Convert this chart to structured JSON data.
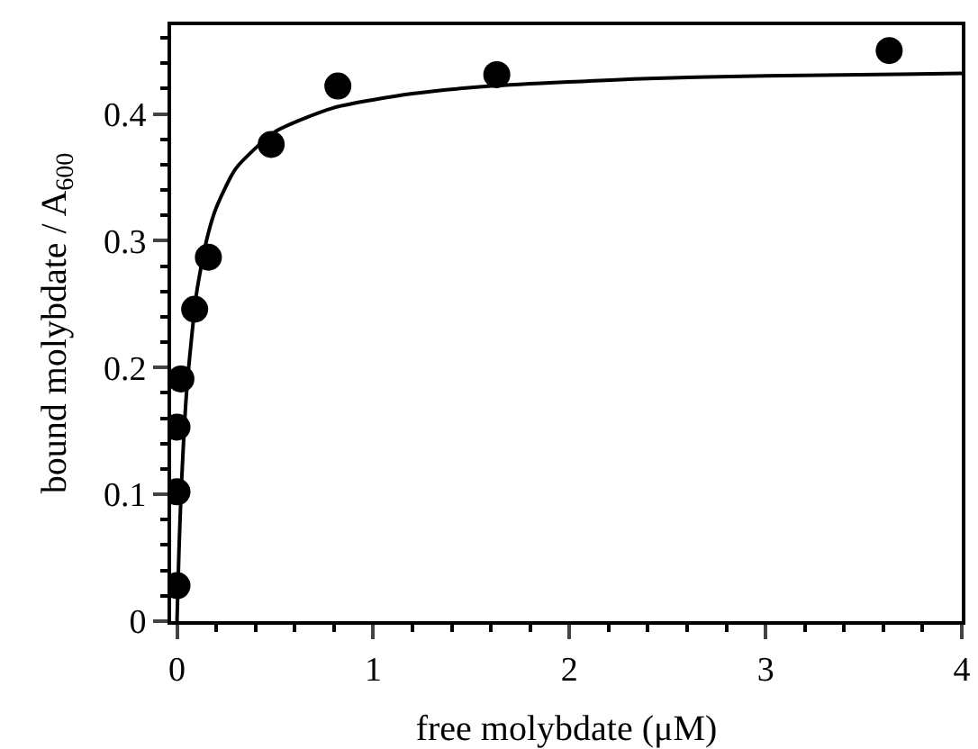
{
  "chart_data": {
    "type": "scatter",
    "xlabel": "free molybdate (μM)",
    "ylabel": "bound molybdate / A$_{600}$",
    "xlim": [
      -0.03,
      4
    ],
    "ylim": [
      0,
      0.47
    ],
    "xticks": [
      0,
      1,
      2,
      3,
      4,
      {
        "value": 0.2,
        "label": null
      },
      {
        "value": 0.4,
        "label": null
      },
      {
        "value": 0.6,
        "label": null
      },
      {
        "value": 0.8,
        "label": null
      },
      {
        "value": 1.2,
        "label": null
      },
      {
        "value": 1.4,
        "label": null
      },
      {
        "value": 1.6,
        "label": null
      },
      {
        "value": 1.8,
        "label": null
      },
      {
        "value": 2.2,
        "label": null
      },
      {
        "value": 2.4,
        "label": null
      },
      {
        "value": 2.6,
        "label": null
      },
      {
        "value": 2.8,
        "label": null
      },
      {
        "value": 3.2,
        "label": null
      },
      {
        "value": 3.4,
        "label": null
      },
      {
        "value": 3.6,
        "label": null
      },
      {
        "value": 3.8,
        "label": null
      }
    ],
    "yticks": [
      0,
      0.1,
      0.2,
      0.3,
      0.4,
      {
        "value": 0.02,
        "label": null
      },
      {
        "value": 0.04,
        "label": null
      },
      {
        "value": 0.06,
        "label": null
      },
      {
        "value": 0.08,
        "label": null
      },
      {
        "value": 0.12,
        "label": null
      },
      {
        "value": 0.14,
        "label": null
      },
      {
        "value": 0.16,
        "label": null
      },
      {
        "value": 0.18,
        "label": null
      },
      {
        "value": 0.22,
        "label": null
      },
      {
        "value": 0.24,
        "label": null
      },
      {
        "value": 0.26,
        "label": null
      },
      {
        "value": 0.28,
        "label": null
      },
      {
        "value": 0.32,
        "label": null
      },
      {
        "value": 0.34,
        "label": null
      },
      {
        "value": 0.36,
        "label": null
      },
      {
        "value": 0.38,
        "label": null
      },
      {
        "value": 0.42,
        "label": null
      },
      {
        "value": 0.44,
        "label": null
      },
      {
        "value": 0.46,
        "label": null
      }
    ],
    "series": [
      {
        "marker": "circle",
        "color": "#000000",
        "x": [
          0,
          0,
          0,
          0.02,
          0.09,
          0.16,
          0.48,
          0.82,
          1.63,
          3.63
        ],
        "values": [
          0.028,
          0.102,
          0.153,
          0.191,
          0.246,
          0.287,
          0.376,
          0.422,
          0.431,
          0.45
        ]
      },
      {
        "type": "line",
        "marker": "none",
        "line_style": "solid",
        "color": "#000000",
        "x": [
          0,
          0.01,
          0.02,
          0.05,
          0.1,
          0.15,
          0.2,
          0.3,
          0.5,
          0.8,
          1.2,
          1.6,
          2.4,
          3,
          4
        ],
        "values": [
          0,
          0.055,
          0.098,
          0.183,
          0.259,
          0.3,
          0.326,
          0.357,
          0.386,
          0.405,
          0.416,
          0.422,
          0.428,
          0.43,
          0.432
        ]
      }
    ]
  }
}
